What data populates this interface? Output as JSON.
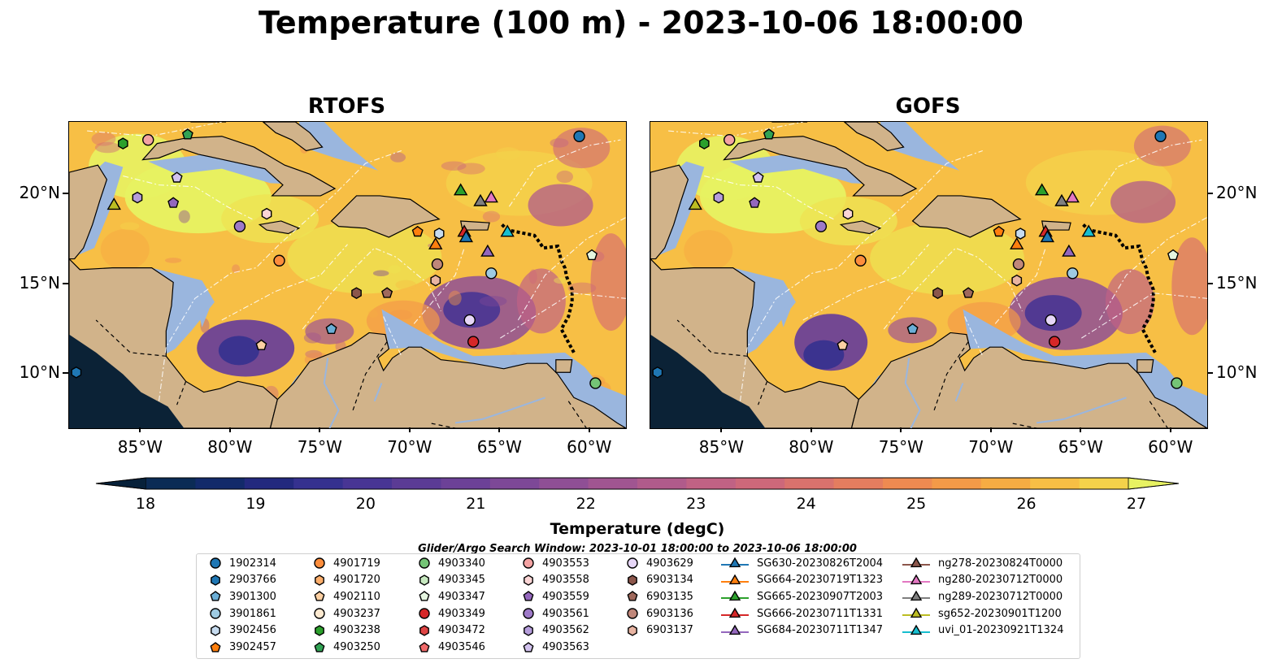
{
  "figure": {
    "title": "Temperature (100 m) - 2023-10-06 18:00:00",
    "panels": [
      {
        "title": "RTOFS"
      },
      {
        "title": "GOFS"
      }
    ],
    "lon_labels": [
      "85°W",
      "80°W",
      "75°W",
      "70°W",
      "65°W",
      "60°W"
    ],
    "lon_values": [
      -85,
      -80,
      -75,
      -70,
      -65,
      -60
    ],
    "lat_labels": [
      "20°N",
      "15°N",
      "10°N"
    ],
    "lat_values": [
      20,
      15,
      10
    ],
    "extent": {
      "lon": [
        -89,
        -58
      ],
      "lat": [
        7,
        24
      ]
    },
    "colorbar": {
      "label": "Temperature (degC)",
      "range": [
        18,
        27
      ],
      "tick_labels": [
        "18",
        "19",
        "20",
        "21",
        "22",
        "23",
        "24",
        "25",
        "26",
        "27"
      ],
      "colors": [
        "#07213a",
        "#0b2b55",
        "#122a6a",
        "#23297e",
        "#35318f",
        "#483594",
        "#5b3b95",
        "#6c4197",
        "#7d4897",
        "#8f4f95",
        "#a05591",
        "#b05b8b",
        "#c06284",
        "#cd687a",
        "#d9726d",
        "#e47d5f",
        "#ee8a51",
        "#f39a48",
        "#f6ac43",
        "#f7bf45",
        "#f4d24a",
        "#eee352",
        "#e7f262"
      ]
    },
    "search_window": "Glider/Argo Search Window: 2023-10-01 18:00:00 to 2023-10-06 18:00:00",
    "map_colors": {
      "land": "#d1b38a",
      "shallow": "#9ab6de",
      "pacific": "#0b2236"
    }
  },
  "legend": [
    {
      "label": "1902314",
      "marker": "circle",
      "color": "#1f77b4"
    },
    {
      "label": "2903766",
      "marker": "hexagon",
      "color": "#1f77b4"
    },
    {
      "label": "3901300",
      "marker": "pentagon",
      "color": "#6baed6"
    },
    {
      "label": "3901861",
      "marker": "circle",
      "color": "#9ecae1"
    },
    {
      "label": "3902456",
      "marker": "hexagon",
      "color": "#c6dbef"
    },
    {
      "label": "3902457",
      "marker": "pentagon",
      "color": "#ff7f0e"
    },
    {
      "label": "4901719",
      "marker": "circle",
      "color": "#fd8d3c"
    },
    {
      "label": "4901720",
      "marker": "hexagon",
      "color": "#fdae6b"
    },
    {
      "label": "4902110",
      "marker": "pentagon",
      "color": "#fdd0a2"
    },
    {
      "label": "4903237",
      "marker": "circle",
      "color": "#fde9d0"
    },
    {
      "label": "4903238",
      "marker": "hexagon",
      "color": "#2ca02c"
    },
    {
      "label": "4903250",
      "marker": "pentagon",
      "color": "#31a354"
    },
    {
      "label": "4903340",
      "marker": "circle",
      "color": "#74c476"
    },
    {
      "label": "4903345",
      "marker": "hexagon",
      "color": "#c7e9c0"
    },
    {
      "label": "4903347",
      "marker": "pentagon",
      "color": "#e5f5e0"
    },
    {
      "label": "4903349",
      "marker": "circle",
      "color": "#d62728"
    },
    {
      "label": "4903472",
      "marker": "hexagon",
      "color": "#de4444"
    },
    {
      "label": "4903546",
      "marker": "pentagon",
      "color": "#f06a6a"
    },
    {
      "label": "4903553",
      "marker": "circle",
      "color": "#f4a3a3"
    },
    {
      "label": "4903558",
      "marker": "hexagon",
      "color": "#fbd5d5"
    },
    {
      "label": "4903559",
      "marker": "pentagon",
      "color": "#9467bd"
    },
    {
      "label": "4903561",
      "marker": "circle",
      "color": "#9e7ac8"
    },
    {
      "label": "4903562",
      "marker": "hexagon",
      "color": "#b59ddb"
    },
    {
      "label": "4903563",
      "marker": "pentagon",
      "color": "#d2c2ee"
    },
    {
      "label": "4903629",
      "marker": "circle",
      "color": "#e6d6f7"
    },
    {
      "label": "6903134",
      "marker": "hexagon",
      "color": "#8c564b"
    },
    {
      "label": "6903135",
      "marker": "pentagon",
      "color": "#a0695c"
    },
    {
      "label": "6903136",
      "marker": "circle",
      "color": "#c0877a"
    },
    {
      "label": "6903137",
      "marker": "hexagon",
      "color": "#e8b4a2"
    },
    {
      "label": "SG630-20230826T2004",
      "marker": "triangle",
      "color": "#1f77b4"
    },
    {
      "label": "SG664-20230719T1323",
      "marker": "triangle",
      "color": "#ff7f0e"
    },
    {
      "label": "SG665-20230907T2003",
      "marker": "triangle",
      "color": "#2ca02c"
    },
    {
      "label": "SG666-20230711T1331",
      "marker": "triangle",
      "color": "#d62728"
    },
    {
      "label": "SG684-20230711T1347",
      "marker": "triangle",
      "color": "#9467bd"
    },
    {
      "label": "ng278-20230824T0000",
      "marker": "triangle",
      "color": "#8c564b"
    },
    {
      "label": "ng280-20230712T0000",
      "marker": "triangle",
      "color": "#e377c2"
    },
    {
      "label": "ng289-20230712T0000",
      "marker": "triangle",
      "color": "#7f7f7f"
    },
    {
      "label": "sg652-20230901T1200",
      "marker": "triangle",
      "color": "#bcbd22"
    },
    {
      "label": "uvi_01-20230921T1324",
      "marker": "triangle",
      "color": "#17becf"
    }
  ],
  "observations": [
    {
      "id": "1902314",
      "lon": -60.6,
      "lat": 23.2
    },
    {
      "id": "4903553",
      "lon": -84.6,
      "lat": 23.0
    },
    {
      "id": "4903250",
      "lon": -82.4,
      "lat": 23.3
    },
    {
      "id": "4903238",
      "lon": -86.0,
      "lat": 22.8
    },
    {
      "id": "4903563",
      "lon": -83.0,
      "lat": 20.9
    },
    {
      "id": "4903562",
      "lon": -85.2,
      "lat": 19.8
    },
    {
      "id": "4903559",
      "lon": -83.2,
      "lat": 19.5
    },
    {
      "id": "sg652-20230901T1200",
      "lon": -86.5,
      "lat": 19.4
    },
    {
      "id": "4903561",
      "lon": -79.5,
      "lat": 18.2
    },
    {
      "id": "4903558",
      "lon": -78.0,
      "lat": 18.9
    },
    {
      "id": "4901719",
      "lon": -77.3,
      "lat": 16.3
    },
    {
      "id": "SG665-20230907T2003",
      "lon": -67.2,
      "lat": 20.2
    },
    {
      "id": "ng289-20230712T0000",
      "lon": -66.1,
      "lat": 19.6
    },
    {
      "id": "ng280-20230712T0000",
      "lon": -65.5,
      "lat": 19.8
    },
    {
      "id": "3902457",
      "lon": -69.6,
      "lat": 17.9
    },
    {
      "id": "3902456",
      "lon": -68.4,
      "lat": 17.8
    },
    {
      "id": "SG666-20230711T1331",
      "lon": -67.0,
      "lat": 17.9
    },
    {
      "id": "SG630-20230826T2004",
      "lon": -66.9,
      "lat": 17.6
    },
    {
      "id": "uvi_01-20230921T1324",
      "lon": -64.6,
      "lat": 17.9
    },
    {
      "id": "SG664-20230719T1323",
      "lon": -68.6,
      "lat": 17.2
    },
    {
      "id": "SG684-20230711T1347",
      "lon": -65.7,
      "lat": 16.8
    },
    {
      "id": "6903136",
      "lon": -68.5,
      "lat": 16.1
    },
    {
      "id": "6903137",
      "lon": -68.6,
      "lat": 15.2
    },
    {
      "id": "3901861",
      "lon": -65.5,
      "lat": 15.6
    },
    {
      "id": "4903347",
      "lon": -59.9,
      "lat": 16.6
    },
    {
      "id": "6903134",
      "lon": -73.0,
      "lat": 14.5
    },
    {
      "id": "6903135",
      "lon": -71.3,
      "lat": 14.5
    },
    {
      "id": "3901300",
      "lon": -74.4,
      "lat": 12.5
    },
    {
      "id": "4903629",
      "lon": -66.7,
      "lat": 13.0
    },
    {
      "id": "4903349",
      "lon": -66.5,
      "lat": 11.8
    },
    {
      "id": "4902110",
      "lon": -78.3,
      "lat": 11.6
    },
    {
      "id": "4903340",
      "lon": -59.7,
      "lat": 9.5
    },
    {
      "id": "2903766",
      "lon": -88.6,
      "lat": 10.1
    }
  ]
}
